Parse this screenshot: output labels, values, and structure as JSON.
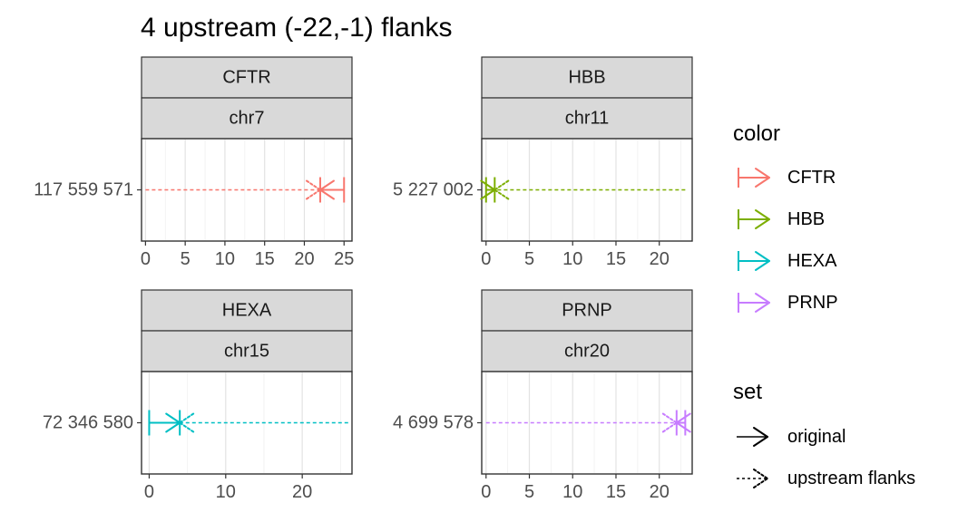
{
  "chart_data": {
    "type": "line",
    "title": "4 upstream (-22,-1) flanks",
    "panels": [
      {
        "gene": "CFTR",
        "chrom": "chr7",
        "y_label": "117 559 571",
        "xticks": [
          0,
          5,
          10,
          15,
          20,
          25
        ],
        "xlim": [
          -0.5,
          26
        ],
        "original": {
          "start": 25,
          "end": 22
        },
        "flank": {
          "start": 0,
          "end": 22
        },
        "strand": "+",
        "color": "#F8766D"
      },
      {
        "gene": "HBB",
        "chrom": "chr11",
        "y_label": "5 227 002",
        "xticks": [
          0,
          5,
          10,
          15,
          20
        ],
        "xlim": [
          -0.5,
          23.8
        ],
        "original": {
          "start": 0,
          "end": 1
        },
        "flank": {
          "start": 23,
          "end": 1
        },
        "strand": "-",
        "color": "#7CAE00"
      },
      {
        "gene": "HEXA",
        "chrom": "chr15",
        "y_label": "72 346 580",
        "xticks": [
          0,
          10,
          20
        ],
        "xlim": [
          -1,
          26.5
        ],
        "original": {
          "start": 0,
          "end": 4
        },
        "flank": {
          "start": 26,
          "end": 4
        },
        "strand": "-",
        "color": "#00BFC4"
      },
      {
        "gene": "PRNP",
        "chrom": "chr20",
        "y_label": "4 699 578",
        "xticks": [
          0,
          5,
          10,
          15,
          20
        ],
        "xlim": [
          -0.5,
          23.8
        ],
        "original": {
          "start": 23,
          "end": 22
        },
        "flank": {
          "start": 0,
          "end": 22
        },
        "strand": "+",
        "color": "#C77CFF"
      }
    ],
    "legend": {
      "color": {
        "title": "color",
        "entries": [
          {
            "label": "CFTR",
            "color": "#F8766D"
          },
          {
            "label": "HBB",
            "color": "#7CAE00"
          },
          {
            "label": "HEXA",
            "color": "#00BFC4"
          },
          {
            "label": "PRNP",
            "color": "#C77CFF"
          }
        ]
      },
      "set": {
        "title": "set",
        "entries": [
          {
            "label": "original",
            "linetype": "solid"
          },
          {
            "label": "upstream flanks",
            "linetype": "dotted"
          }
        ]
      },
      "placement": "right"
    },
    "grid": true
  }
}
